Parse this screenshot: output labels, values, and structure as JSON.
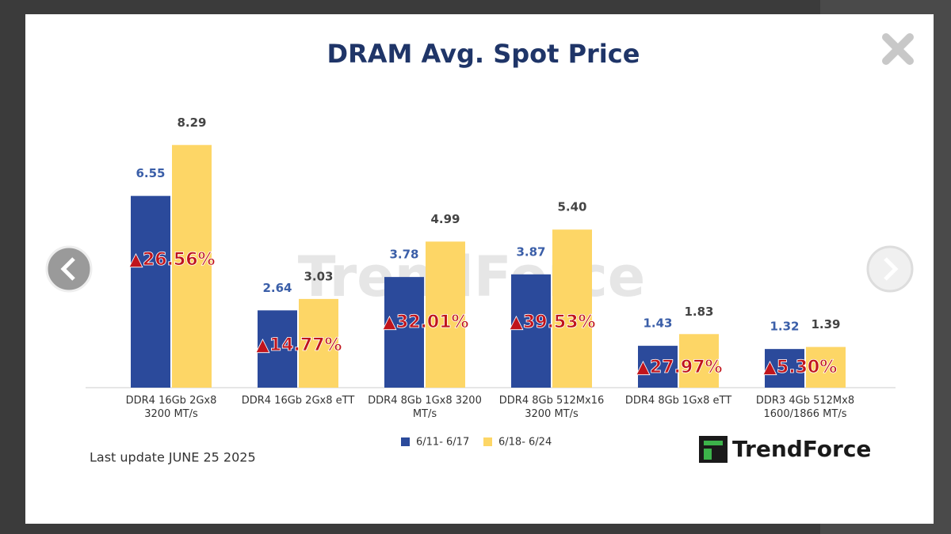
{
  "chart_data": {
    "type": "bar",
    "title": "DRAM Avg. Spot Price",
    "categories": [
      "DDR4 16Gb 2Gx8 3200 MT/s",
      "DDR4 16Gb 2Gx8 eTT",
      "DDR4 8Gb 1Gx8 3200 MT/s",
      "DDR4 8Gb 512Mx16 3200 MT/s",
      "DDR4 8Gb 1Gx8 eTT",
      "DDR3 4Gb 512Mx8 1600/1866  MT/s"
    ],
    "series": [
      {
        "name": "6/11- 6/17",
        "color": "#2b4a9b",
        "values": [
          6.55,
          2.64,
          3.78,
          3.87,
          1.43,
          1.32
        ]
      },
      {
        "name": "6/18- 6/24",
        "color": "#fdd666",
        "values": [
          8.29,
          3.03,
          4.99,
          5.4,
          1.83,
          1.39
        ],
        "value_labels": [
          "8.29",
          "3.03",
          "4.99",
          "5.40",
          "1.83",
          "1.39"
        ]
      }
    ],
    "annotations": [
      "▲26.56%",
      "▲14.77%",
      "▲32.01%",
      "▲39.53%",
      "▲27.97%",
      "▲5.30%"
    ],
    "ylim": [
      0,
      10
    ],
    "legend": "bottom",
    "note": "Last update JUNE 25  2025",
    "logo": "TrendForce",
    "watermark": "TrendForce"
  }
}
